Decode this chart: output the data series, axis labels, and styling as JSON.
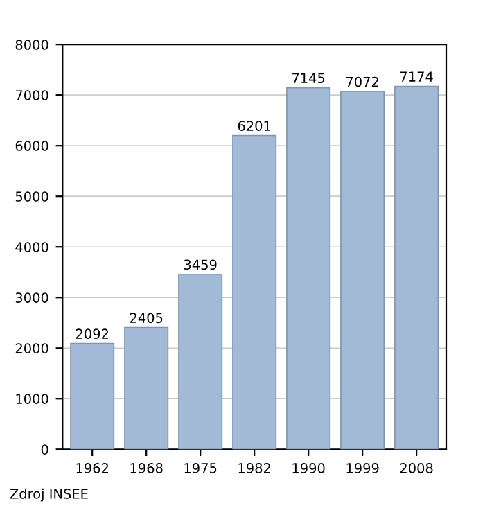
{
  "chart_data": {
    "type": "bar",
    "categories": [
      "1962",
      "1968",
      "1975",
      "1982",
      "1990",
      "1999",
      "2008"
    ],
    "values": [
      2092,
      2405,
      3459,
      6201,
      7145,
      7072,
      7174
    ],
    "color": "#a3bad6",
    "ylim": [
      0,
      8000
    ],
    "yticks": [
      0,
      1000,
      2000,
      3000,
      4000,
      5000,
      6000,
      7000,
      8000
    ],
    "grid": "y",
    "data_labels": true,
    "annotations": [
      "Zdroj INSEE"
    ]
  }
}
